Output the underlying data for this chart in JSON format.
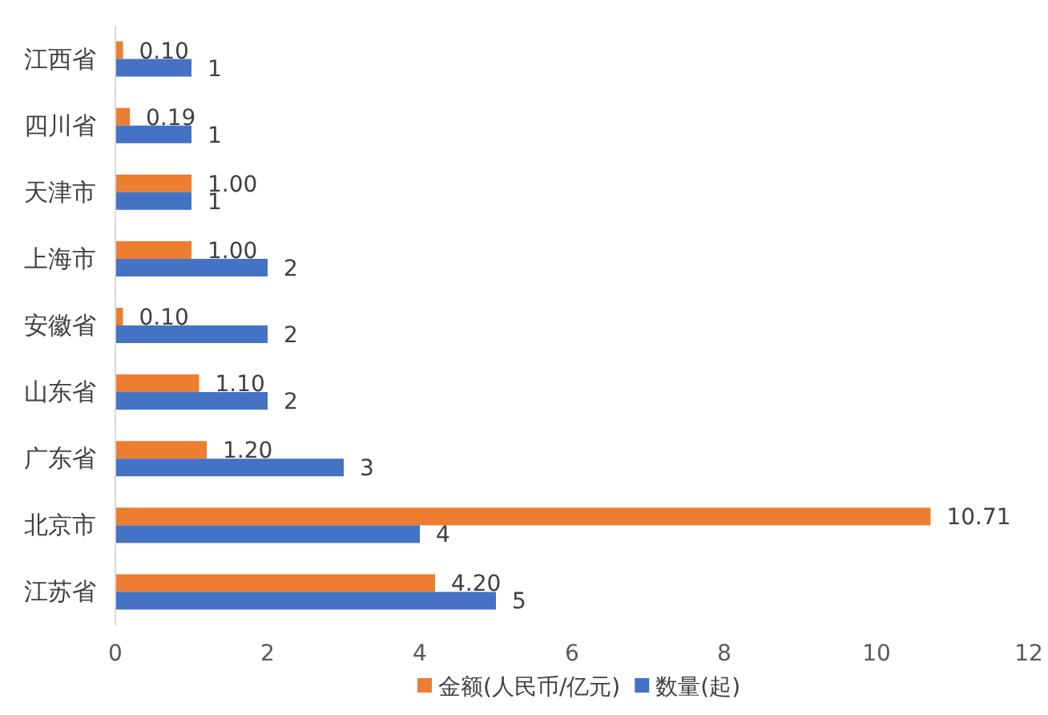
{
  "chart_data": {
    "type": "bar",
    "orientation": "horizontal",
    "categories": [
      "江西省",
      "四川省",
      "天津市",
      "上海市",
      "安徽省",
      "山东省",
      "广东省",
      "北京市",
      "江苏省"
    ],
    "series": [
      {
        "name": "金额(人民币/亿元)",
        "color": "#ed7d31",
        "values": [
          0.1,
          0.19,
          1.0,
          1.0,
          0.1,
          1.1,
          1.2,
          10.71,
          4.2
        ],
        "value_labels": [
          "0.10",
          "0.19",
          "1.00",
          "1.00",
          "0.10",
          "1.10",
          "1.20",
          "10.71",
          "4.20"
        ]
      },
      {
        "name": "数量(起)",
        "color": "#4472c4",
        "values": [
          1,
          1,
          1,
          2,
          2,
          2,
          3,
          4,
          5
        ],
        "value_labels": [
          "1",
          "1",
          "1",
          "2",
          "2",
          "2",
          "3",
          "4",
          "5"
        ]
      }
    ],
    "xlim": [
      0,
      12
    ],
    "xticks": [
      0,
      2,
      4,
      6,
      8,
      10,
      12
    ],
    "grid": false,
    "legend": "bottom"
  }
}
